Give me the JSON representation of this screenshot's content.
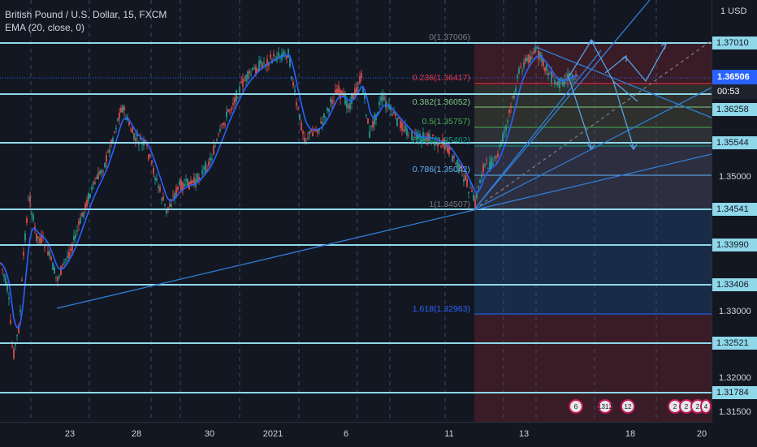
{
  "legend": {
    "symbol": "British Pound / U.S. Dollar, 15, FXCM",
    "indicator": "EMA (20, close, 0)"
  },
  "price_axis": {
    "currency": "1 USD",
    "ticks": [
      "1.35000",
      "1.33000",
      "1.32000",
      "1.31500"
    ],
    "levels": [
      "1.37010",
      "1.36258",
      "1.35544",
      "1.34541",
      "1.33990",
      "1.33406",
      "1.32521",
      "1.31784"
    ],
    "current_price": "1.36506",
    "countdown": "00:53",
    "colors": {
      "level": "#8fd8ea",
      "current": "#2962ff",
      "countdown": "#1e222d"
    }
  },
  "time_axis": {
    "labels": [
      "23",
      "28",
      "30",
      "2021",
      "6",
      "11",
      "13",
      "18",
      "20"
    ]
  },
  "fib": {
    "labels": [
      "0(1.37006)",
      "0.236(1.36417)",
      "0.382(1.36052)",
      "0.5(1.35757)",
      "0.618(1.35462)",
      "0.786(1.35042)",
      "1(1.34507)",
      "1.618(1.32963)"
    ],
    "colors": [
      "#787b86",
      "#f23645",
      "#81c784",
      "#4caf50",
      "#089981",
      "#64b5f6",
      "#787b86",
      "#2962ff"
    ]
  },
  "news_events": [
    "6",
    "1312",
    "12",
    "2",
    "2",
    "2",
    "4"
  ],
  "colors": {
    "background": "#131722",
    "hline": "#8fd8ea",
    "trendline": "#2f7fd8",
    "ema": "#2962ff",
    "candle_up": "#26a69a",
    "candle_down": "#ef5350"
  }
}
